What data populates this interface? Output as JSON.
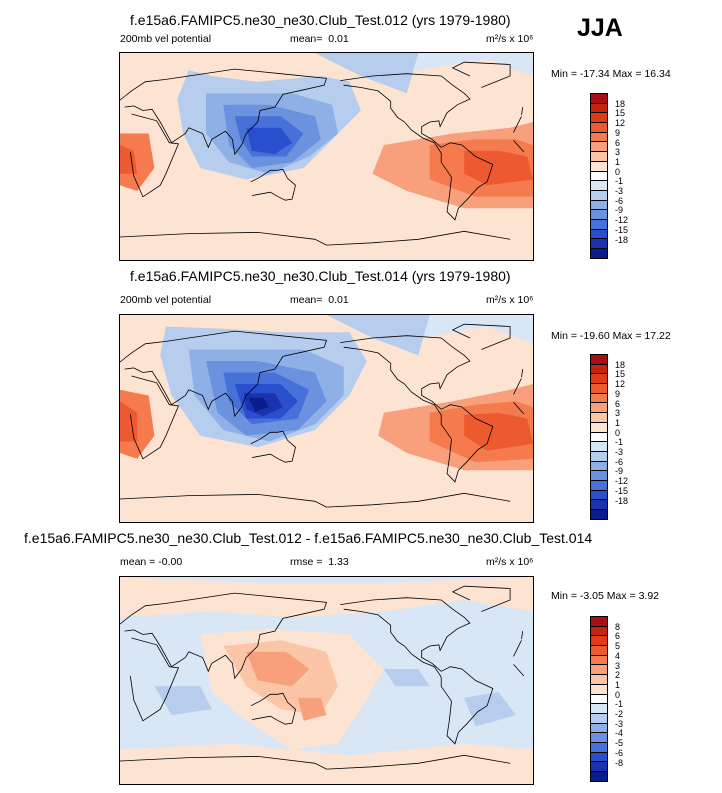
{
  "season": "JJA",
  "panels": [
    {
      "title": "f.e15a6.FAMIPC5.ne30_ne30.Club_Test.012 (yrs 1979-1980)",
      "variable": "200mb vel potential",
      "stat_label": "mean=",
      "stat_value": "0.01",
      "units": "m²/s x 10⁶",
      "min_label": "Min =",
      "min_value": "-17.34",
      "max_label": "Max =",
      "max_value": "16.34",
      "levels": [
        "18",
        "15",
        "12",
        "9",
        "6",
        "3",
        "1",
        "0",
        "-1",
        "-3",
        "-6",
        "-9",
        "-12",
        "-15",
        "-18"
      ]
    },
    {
      "title": "f.e15a6.FAMIPC5.ne30_ne30.Club_Test.014 (yrs 1979-1980)",
      "variable": "200mb vel potential",
      "stat_label": "mean=",
      "stat_value": "0.01",
      "units": "m²/s x 10⁶",
      "min_label": "Min =",
      "min_value": "-19.60",
      "max_label": "Max =",
      "max_value": "17.22",
      "levels": [
        "18",
        "15",
        "12",
        "9",
        "6",
        "3",
        "1",
        "0",
        "-1",
        "-3",
        "-6",
        "-9",
        "-12",
        "-15",
        "-18"
      ]
    },
    {
      "title": "f.e15a6.FAMIPC5.ne30_ne30.Club_Test.012 - f.e15a6.FAMIPC5.ne30_ne30.Club_Test.014",
      "variable": "",
      "mean_label": "mean =",
      "mean_value": "-0.00",
      "stat_label": "rmse =",
      "stat_value": "1.33",
      "units": "m²/s x 10⁶",
      "min_label": "Min =",
      "min_value": "-3.05",
      "max_label": "Max =",
      "max_value": "3.92",
      "levels": [
        "8",
        "6",
        "5",
        "4",
        "3",
        "2",
        "1",
        "0",
        "-1",
        "-2",
        "-3",
        "-4",
        "-5",
        "-6",
        "-8"
      ]
    }
  ],
  "palette": [
    "#a50f15",
    "#c4230f",
    "#e03a1a",
    "#ee5a2f",
    "#f57b4f",
    "#f8a07c",
    "#fbc6a8",
    "#fde4d2",
    "#ffffff",
    "#d9e6f5",
    "#b6cdee",
    "#8fb0e6",
    "#6a92df",
    "#4770d9",
    "#2a4fce",
    "#1a32b0",
    "#0b1c8c"
  ],
  "chart_data": [
    {
      "type": "heatmap",
      "title": "f.e15a6.FAMIPC5.ne30_ne30.Club_Test.012 (yrs 1979-1980)",
      "variable": "200mb vel potential",
      "units": "m2/s x 10^6",
      "mean": 0.01,
      "min": -17.34,
      "max": 16.34,
      "contour_levels": [
        -18,
        -15,
        -12,
        -9,
        -6,
        -3,
        -1,
        0,
        1,
        3,
        6,
        9,
        12,
        15,
        18
      ],
      "centers": [
        {
          "lon": 130,
          "lat": 10,
          "value": -15
        },
        {
          "lon": -30,
          "lat": -5,
          "value": 14
        },
        {
          "lon": 15,
          "lat": -5,
          "value": 12
        }
      ]
    },
    {
      "type": "heatmap",
      "title": "f.e15a6.FAMIPC5.ne30_ne30.Club_Test.014 (yrs 1979-1980)",
      "variable": "200mb vel potential",
      "units": "m2/s x 10^6",
      "mean": 0.01,
      "min": -19.6,
      "max": 17.22,
      "contour_levels": [
        -18,
        -15,
        -12,
        -9,
        -6,
        -3,
        -1,
        0,
        1,
        3,
        6,
        9,
        12,
        15,
        18
      ],
      "centers": [
        {
          "lon": 125,
          "lat": 10,
          "value": -18
        },
        {
          "lon": -30,
          "lat": -5,
          "value": 16
        },
        {
          "lon": 15,
          "lat": -5,
          "value": 13
        }
      ]
    },
    {
      "type": "heatmap",
      "title": "f.e15a6.FAMIPC5.ne30_ne30.Club_Test.012 - f.e15a6.FAMIPC5.ne30_ne30.Club_Test.014",
      "units": "m2/s x 10^6",
      "mean": -0.0,
      "rmse": 1.33,
      "min": -3.05,
      "max": 3.92,
      "contour_levels": [
        -8,
        -6,
        -5,
        -4,
        -3,
        -2,
        -1,
        0,
        1,
        2,
        3,
        4,
        5,
        6,
        8
      ],
      "centers": [
        {
          "lon": 130,
          "lat": 10,
          "value": 3
        },
        {
          "lon": 160,
          "lat": -20,
          "value": 2
        },
        {
          "lon": 50,
          "lat": -15,
          "value": -2
        },
        {
          "lon": -40,
          "lat": -20,
          "value": -2
        }
      ]
    }
  ]
}
